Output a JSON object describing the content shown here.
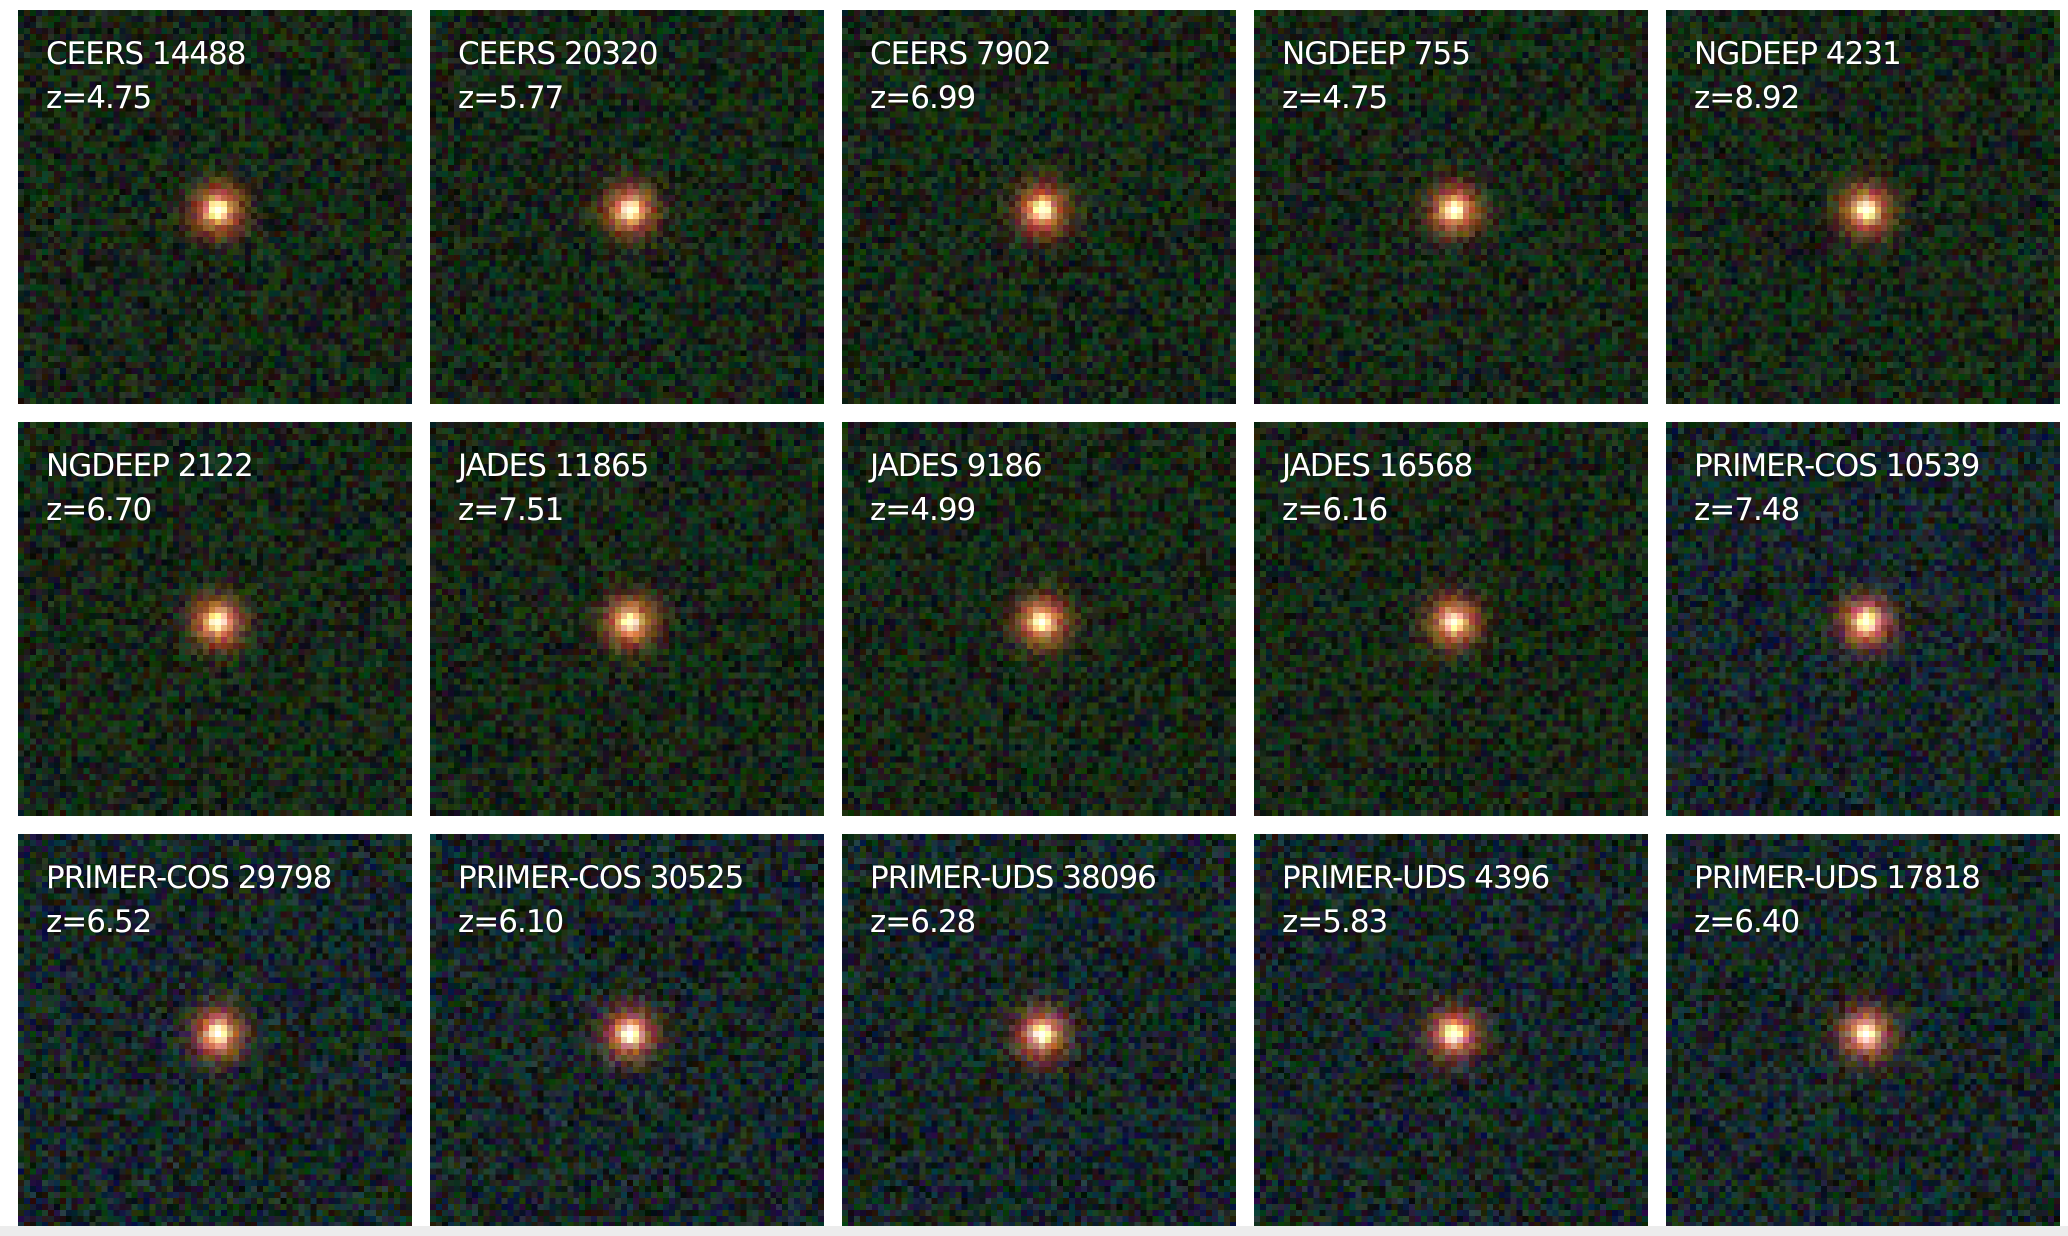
{
  "panels": [
    {
      "name": "CEERS 14488",
      "redshift": "z=4.75"
    },
    {
      "name": "CEERS 20320",
      "redshift": "z=5.77"
    },
    {
      "name": "CEERS 7902",
      "redshift": "z=6.99"
    },
    {
      "name": "NGDEEP 755",
      "redshift": "z=4.75"
    },
    {
      "name": "NGDEEP 4231",
      "redshift": "z=8.92"
    },
    {
      "name": "NGDEEP 2122",
      "redshift": "z=6.70"
    },
    {
      "name": "JADES 11865",
      "redshift": "z=7.51"
    },
    {
      "name": "JADES 9186",
      "redshift": "z=4.99"
    },
    {
      "name": "JADES 16568",
      "redshift": "z=6.16"
    },
    {
      "name": "PRIMER-COS 10539",
      "redshift": "z=7.48"
    },
    {
      "name": "PRIMER-COS 29798",
      "redshift": "z=6.52"
    },
    {
      "name": "PRIMER-COS 30525",
      "redshift": "z=6.10"
    },
    {
      "name": "PRIMER-UDS 38096",
      "redshift": "z=6.28"
    },
    {
      "name": "PRIMER-UDS 4396",
      "redshift": "z=5.83"
    },
    {
      "name": "PRIMER-UDS 17818",
      "redshift": "z=6.40"
    }
  ],
  "colors": {
    "background": "#ffffff",
    "label": "#ffffff",
    "source_core": "#fff4d0",
    "source_halo": "#e0301e"
  }
}
